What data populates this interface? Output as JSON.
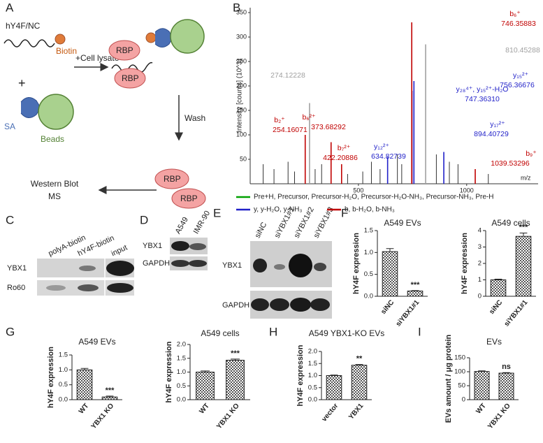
{
  "panel_labels": [
    "A",
    "B",
    "C",
    "D",
    "E",
    "F",
    "G",
    "H",
    "I"
  ],
  "diagram": {
    "probe": "hY4F/NC",
    "biotin": "Biotin",
    "plus": "+",
    "step1": "+Cell lysate",
    "sa": "SA",
    "beads": "Beads",
    "rbp_labels": [
      "RBP",
      "RBP",
      "RBP",
      "RBP"
    ],
    "step2": "Wash",
    "output": [
      "Western Blot",
      "MS"
    ]
  },
  "blots": {
    "C": {
      "lanes": [
        "polyA-biotin",
        "hY4F-biotin",
        "input"
      ],
      "rows": [
        "YBX1",
        "Ro60"
      ]
    },
    "D": {
      "lanes": [
        "A549",
        "IMR-90"
      ],
      "rows": [
        "YBX1",
        "GAPDH"
      ]
    },
    "E": {
      "lanes": [
        "siNC",
        "siYBX1#1",
        "siYBX1#2",
        "siYBX1#3"
      ],
      "rows": [
        "YBX1",
        "GAPDH"
      ]
    }
  },
  "chart_data": [
    {
      "type": "spectrum",
      "y_label": "Intensity [counts] (10^3)",
      "x_label": "m/z",
      "xlim": [
        0,
        1330
      ],
      "xticks": [
        500,
        1000
      ],
      "ylim": [
        0,
        360
      ],
      "yticks": [
        50,
        100,
        150,
        200,
        250,
        300,
        350
      ],
      "series": [
        {
          "name": "Pre+H, Precursor, Precursor-H₂O, Precursor-H₂O-NH₃, Precursor-NH₃, Pre-H",
          "color": "#00a000",
          "x": [],
          "values": []
        },
        {
          "name": "y, y-H₂O, y-NH₃",
          "color": "#1f1fc8",
          "x": [
            634.82739,
            747.3631,
            756.36676,
            894.40729
          ],
          "values": [
            55,
            190,
            210,
            65
          ],
          "ions": [
            "y₁₂²⁺",
            "y₂₈⁴⁺, y₁₅²⁺-H₂O",
            "y₁₅²⁺",
            "y₁₇²⁺"
          ],
          "mz_labels": [
            "634.82739",
            "747.36310",
            "756.36676",
            "894.40729"
          ]
        },
        {
          "name": "b, b-H₂O, b-NH₃",
          "color": "#c00000",
          "x": [
            254.16071,
            373.68292,
            422.20886,
            746.35883,
            1039.53296
          ],
          "values": [
            100,
            85,
            40,
            330,
            30
          ],
          "ions": [
            "b₂⁺",
            "b₆²⁺",
            "b₇²⁺",
            "b₆⁺",
            "b₉⁺"
          ],
          "mz_labels": [
            "254.16071",
            "373.68292",
            "422.20886",
            "746.35883",
            "1039.53296"
          ]
        },
        {
          "color": "#a0a0a0",
          "x": [
            274.12228,
            810.45288
          ],
          "values": [
            165,
            285
          ],
          "mz_labels": [
            "274.12228",
            "810.45288"
          ]
        },
        {
          "color": "#333333",
          "x": [
            60,
            110,
            175,
            205,
            300,
            330,
            450,
            520,
            560,
            600,
            680,
            700,
            860,
            920,
            960,
            1100
          ],
          "values": [
            40,
            30,
            45,
            25,
            30,
            40,
            20,
            25,
            45,
            30,
            60,
            40,
            60,
            45,
            40,
            20
          ]
        }
      ]
    },
    {
      "type": "bar",
      "title": "A549 EVs",
      "y_label": "hY4F expression",
      "categories": [
        "siNC",
        "siYBX1#1"
      ],
      "values": [
        1.02,
        0.12
      ],
      "errors": [
        0.07,
        0.01
      ],
      "significance": [
        null,
        "***"
      ],
      "color": "#555555",
      "ylim": [
        0,
        1.5
      ],
      "yticks": [
        {
          "value": 0,
          "label": "0.0"
        },
        0.5,
        {
          "value": 1,
          "label": "1.0"
        },
        1.5
      ]
    },
    {
      "type": "bar",
      "title": "A549 cells",
      "y_label": "hY4F expression",
      "categories": [
        "siNC",
        "siYBX1#1"
      ],
      "values": [
        1.0,
        3.65
      ],
      "errors": [
        0.04,
        0.2
      ],
      "significance": [
        null,
        "***"
      ],
      "color": "#555555",
      "ylim": [
        0,
        4
      ],
      "yticks": [
        0,
        1,
        2,
        3,
        4
      ]
    },
    {
      "type": "bar",
      "title": "A549 EVs",
      "y_label": "hY4F expression",
      "categories": [
        "WT",
        "YBX1 KO"
      ],
      "values": [
        1.0,
        0.09
      ],
      "errors": [
        0.05,
        0.03
      ],
      "significance": [
        null,
        "***"
      ],
      "color": "#555555",
      "ylim": [
        0,
        1.5
      ],
      "yticks": [
        {
          "value": 0,
          "label": "0.0"
        },
        0.5,
        {
          "value": 1,
          "label": "1.0"
        },
        1.5
      ]
    },
    {
      "type": "bar",
      "title": "A549 cells",
      "y_label": "hY4F expression",
      "categories": [
        "WT",
        "YBX1 KO"
      ],
      "values": [
        1.0,
        1.43
      ],
      "errors": [
        0.04,
        0.04
      ],
      "significance": [
        null,
        "***"
      ],
      "color": "#555555",
      "ylim": [
        0,
        2
      ],
      "yticks": [
        {
          "value": 0,
          "label": "0.0"
        },
        0.5,
        {
          "value": 1,
          "label": "1.0"
        },
        1.5,
        {
          "value": 2,
          "label": "2.0"
        }
      ]
    },
    {
      "type": "bar",
      "title": "A549 YBX1-KO EVs",
      "y_label": "hY4F expression",
      "categories": [
        "vector",
        "YBX1"
      ],
      "values": [
        1.0,
        1.43
      ],
      "errors": [
        0.02,
        0.03
      ],
      "significance": [
        null,
        "**"
      ],
      "color": "#555555",
      "ylim": [
        0,
        2
      ],
      "yticks": [
        {
          "value": 0,
          "label": "0.0"
        },
        0.5,
        {
          "value": 1,
          "label": "1.0"
        },
        1.5,
        {
          "value": 2,
          "label": "2.0"
        }
      ]
    },
    {
      "type": "bar",
      "title": "EVs",
      "y_label": "EVs amount / μg protein",
      "categories": [
        "WT",
        "YBX1 KO"
      ],
      "values": [
        101,
        95
      ],
      "errors": [
        2,
        2
      ],
      "significance": [
        null,
        "ns"
      ],
      "color": "#555555",
      "ylim": [
        0,
        150
      ],
      "yticks": [
        0,
        50,
        100,
        150
      ]
    }
  ]
}
